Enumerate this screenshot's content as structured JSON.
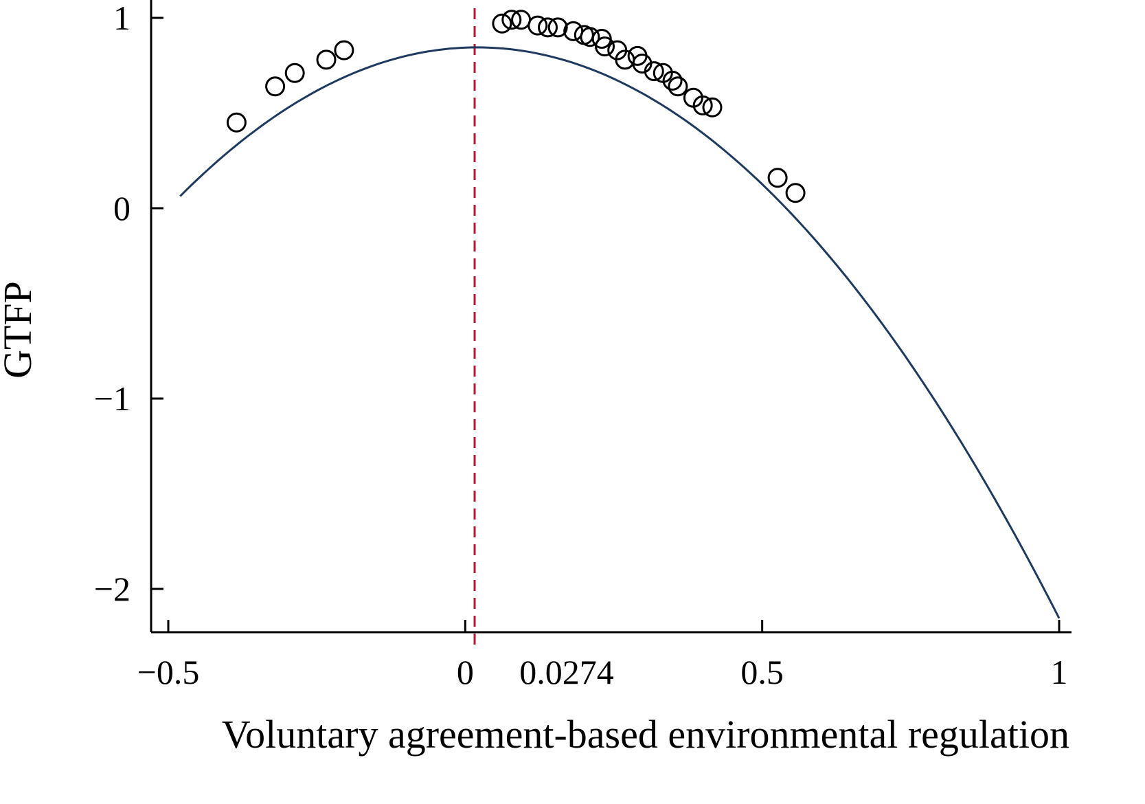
{
  "chart_data": {
    "type": "scatter",
    "title": "",
    "xlabel": "Voluntary agreement-based environmental regulation",
    "ylabel": "GTFP",
    "xlim": [
      -0.53,
      1.02
    ],
    "ylim": [
      -2.22,
      1.1
    ],
    "x_ticks": [
      {
        "value": -0.5,
        "label": "−0.5"
      },
      {
        "value": 0,
        "label": "0"
      },
      {
        "value": 0.5,
        "label": "0.5"
      },
      {
        "value": 1,
        "label": "1"
      }
    ],
    "y_ticks": [
      {
        "value": 1,
        "label": "1"
      },
      {
        "value": 0,
        "label": "0"
      },
      {
        "value": -1,
        "label": "−1"
      },
      {
        "value": -2,
        "label": "−2"
      }
    ],
    "threshold": {
      "value": 0.0274,
      "label": "0.0274",
      "color": "#b5162b",
      "style": "dashed"
    },
    "fit_curve": {
      "type": "quadratic",
      "x_range": [
        -0.48,
        1.0
      ],
      "points": [
        {
          "x": -0.48,
          "y": 0.03
        },
        {
          "x": 0.0274,
          "y": 0.95
        },
        {
          "x": 0.5,
          "y": 0.02
        },
        {
          "x": 1.0,
          "y": -2.12
        }
      ],
      "color": "#1f3a5f"
    },
    "grid": false,
    "legend": "none",
    "points": [
      {
        "x": -0.385,
        "y": 0.45
      },
      {
        "x": -0.32,
        "y": 0.64
      },
      {
        "x": -0.287,
        "y": 0.71
      },
      {
        "x": -0.234,
        "y": 0.78
      },
      {
        "x": -0.204,
        "y": 0.83
      },
      {
        "x": 0.062,
        "y": 0.97
      },
      {
        "x": 0.078,
        "y": 0.99
      },
      {
        "x": 0.094,
        "y": 0.99
      },
      {
        "x": 0.122,
        "y": 0.96
      },
      {
        "x": 0.139,
        "y": 0.95
      },
      {
        "x": 0.156,
        "y": 0.95
      },
      {
        "x": 0.182,
        "y": 0.93
      },
      {
        "x": 0.2,
        "y": 0.91
      },
      {
        "x": 0.21,
        "y": 0.9
      },
      {
        "x": 0.23,
        "y": 0.89
      },
      {
        "x": 0.235,
        "y": 0.85
      },
      {
        "x": 0.256,
        "y": 0.83
      },
      {
        "x": 0.269,
        "y": 0.78
      },
      {
        "x": 0.29,
        "y": 0.8
      },
      {
        "x": 0.298,
        "y": 0.76
      },
      {
        "x": 0.318,
        "y": 0.72
      },
      {
        "x": 0.333,
        "y": 0.71
      },
      {
        "x": 0.349,
        "y": 0.67
      },
      {
        "x": 0.358,
        "y": 0.64
      },
      {
        "x": 0.384,
        "y": 0.58
      },
      {
        "x": 0.4,
        "y": 0.54
      },
      {
        "x": 0.416,
        "y": 0.53
      },
      {
        "x": 0.526,
        "y": 0.16
      },
      {
        "x": 0.556,
        "y": 0.08
      }
    ]
  },
  "colors": {
    "curve": "#1f3a5f",
    "threshold": "#b5162b",
    "marker": "#000000",
    "axis": "#000000"
  }
}
